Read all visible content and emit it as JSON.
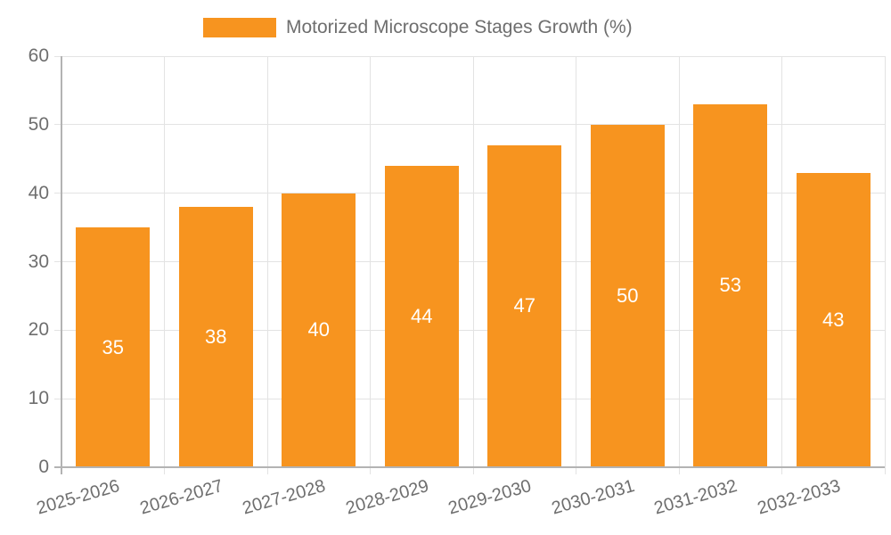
{
  "legend": {
    "label": "Motorized Microscope Stages Growth (%)"
  },
  "colors": {
    "bar": "#F7941F",
    "axis_text": "#6E6E6E",
    "grid_line": "#E3E3E3",
    "axis_line": "#B3B3B3",
    "value_label": "#FFFFFF",
    "background": "#FFFFFF"
  },
  "chart_data": {
    "type": "bar",
    "title": "Motorized Microscope Stages Growth (%)",
    "categories": [
      "2025-2026",
      "2026-2027",
      "2027-2028",
      "2028-2029",
      "2029-2030",
      "2030-2031",
      "2031-2032",
      "2032-2033"
    ],
    "values": [
      35,
      38,
      40,
      44,
      47,
      50,
      53,
      43
    ],
    "xlabel": "",
    "ylabel": "",
    "ylim": [
      0,
      60
    ],
    "yticks": [
      0,
      10,
      20,
      30,
      40,
      50,
      60
    ],
    "grid": true,
    "legend_position": "top-center",
    "value_labels": "inside-center",
    "x_label_rotation_deg": -16
  }
}
